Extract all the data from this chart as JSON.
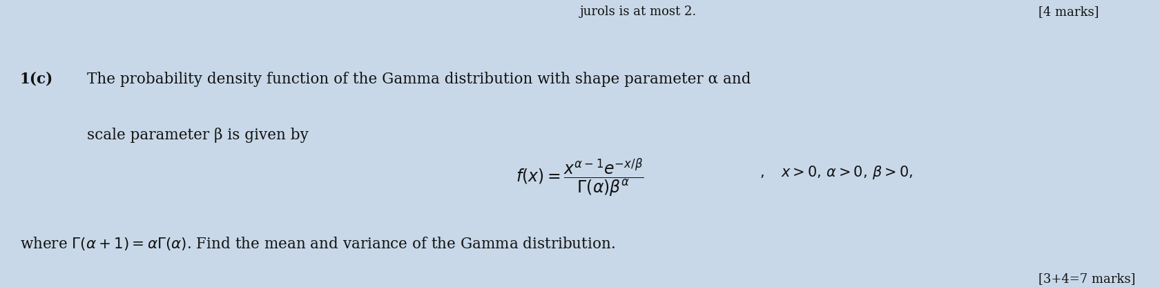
{
  "bg_color": "#c8d8e8",
  "text_color": "#111111",
  "top_right_partial": "jurols is at most 2.",
  "marks_top": "[4 marks]",
  "line1_bold": "1(c)",
  "line1_rest": "The probability density function of the Gamma distribution with shape parameter α and",
  "line2": "scale parameter β is given by",
  "line_where": "where Γ(α + 1) = αΓ(α). Find the mean and variance of the Gamma distribution.",
  "marks_bottom": "[3+4=7 marks]",
  "fig_width": 16.8,
  "fig_height": 4.16,
  "dpi": 100
}
